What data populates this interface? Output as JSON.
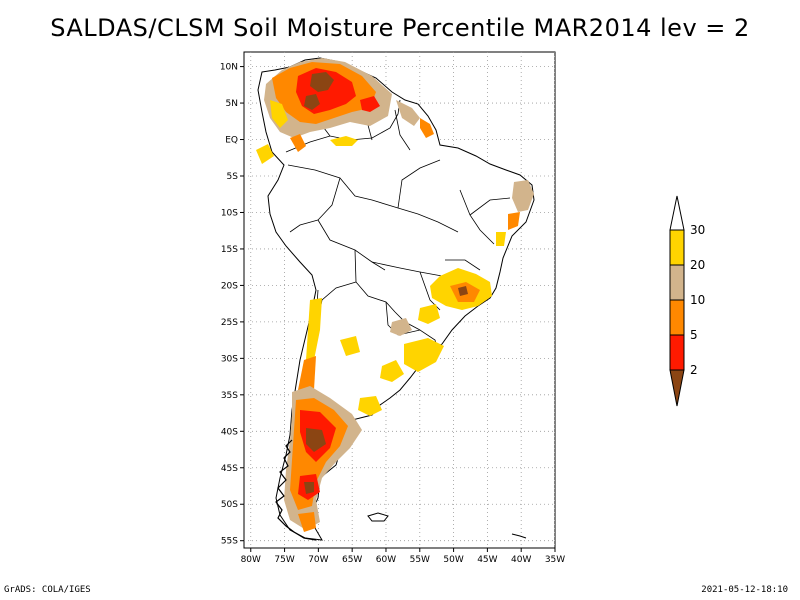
{
  "title": "SALDAS/CLSM Soil Moisture Percentile MAR2014 lev = 2",
  "footer": {
    "left": "GrADS: COLA/IGES",
    "right": "2021-05-12-18:10"
  },
  "map": {
    "region": "South America",
    "lat_labels": [
      "10N",
      "5N",
      "EQ",
      "5S",
      "10S",
      "15S",
      "20S",
      "25S",
      "30S",
      "35S",
      "40S",
      "45S",
      "50S",
      "55S"
    ],
    "lat_values": [
      10,
      5,
      0,
      -5,
      -10,
      -15,
      -20,
      -25,
      -30,
      -35,
      -40,
      -45,
      -50,
      -55
    ],
    "lon_labels": [
      "80W",
      "75W",
      "70W",
      "65W",
      "60W",
      "55W",
      "50W",
      "45W",
      "40W",
      "35W"
    ],
    "lon_values": [
      -80,
      -75,
      -70,
      -65,
      -60,
      -55,
      -50,
      -45,
      -40,
      -35
    ],
    "lon_range": [
      -81,
      -35
    ],
    "lat_range": [
      -56,
      12
    ]
  },
  "colorbar": {
    "labels": [
      "30",
      "20",
      "10",
      "5",
      "2"
    ],
    "colors": {
      "above_30": "#ffffff",
      "20_30": "#ffd400",
      "10_20": "#d2b48c",
      "5_10": "#ff8800",
      "2_5": "#ff1a00",
      "below_2": "#8b4513"
    }
  }
}
